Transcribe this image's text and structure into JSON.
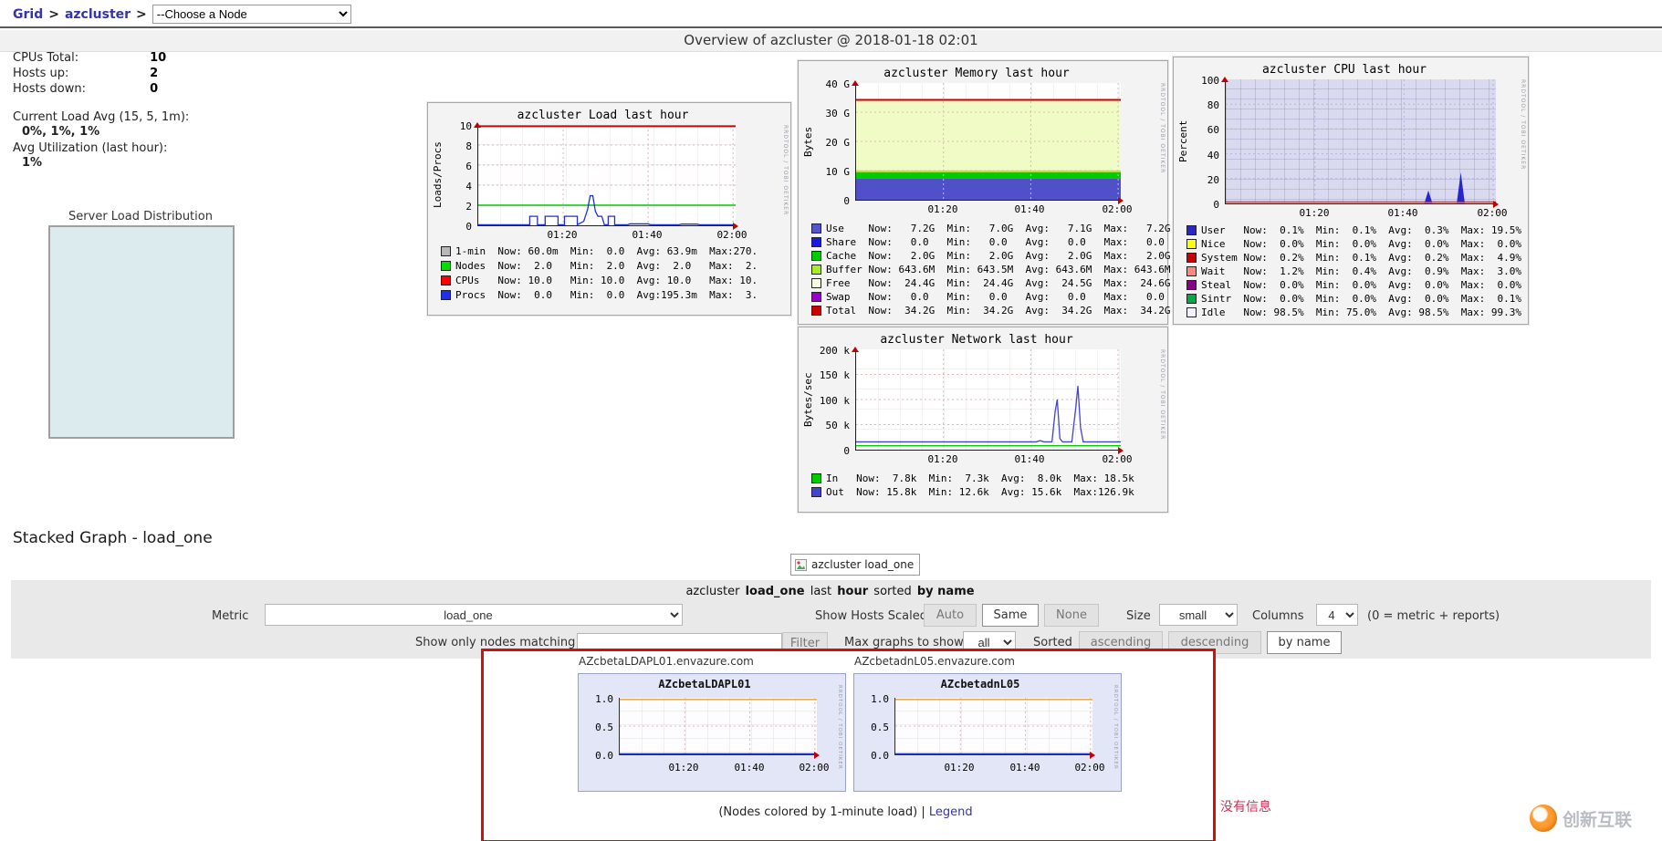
{
  "nav": {
    "links": [
      "Grid",
      "azcluster"
    ],
    "separator": ">",
    "node_select": "--Choose a Node"
  },
  "header": {
    "title": "Overview of azcluster @ 2018-01-18 02:01"
  },
  "summary": {
    "rows": [
      {
        "label": "CPUs Total:",
        "value": "10"
      },
      {
        "label": "Hosts up:",
        "value": "2"
      },
      {
        "label": "Hosts down:",
        "value": "0"
      }
    ],
    "load_avg_label": "Current Load Avg (15, 5, 1m):",
    "load_avg_value": "0%, 1%, 1%",
    "util_label": "Avg Utilization (last hour):",
    "util_value": "1%",
    "pie_title": "Server Load Distribution"
  },
  "charts": {
    "load": {
      "title": "azcluster Load last hour",
      "ylabel": "Loads/Procs",
      "yticks": [
        "10",
        "8",
        "6",
        "4",
        "2",
        "0"
      ],
      "xticks": [
        "01:20",
        "01:40",
        "02:00"
      ],
      "watermark": "RRDTOOL / TOBI OETIKER",
      "legend": [
        {
          "c": "#b8b8b8",
          "t": "1-min  Now: 60.0m  Min:  0.0  Avg: 63.9m  Max:270."
        },
        {
          "c": "#00e000",
          "t": "Nodes  Now:  2.0   Min:  2.0  Avg:  2.0   Max:  2."
        },
        {
          "c": "#ff0000",
          "t": "CPUs   Now: 10.0   Min: 10.0  Avg: 10.0   Max: 10."
        },
        {
          "c": "#2030f0",
          "t": "Procs  Now:  0.0   Min:  0.0  Avg:195.3m  Max:  3."
        }
      ]
    },
    "memory": {
      "title": "azcluster Memory last hour",
      "ylabel": "Bytes",
      "yticks": [
        "40 G",
        "30 G",
        "20 G",
        "10 G",
        "0"
      ],
      "xticks": [
        "01:20",
        "01:40",
        "02:00"
      ],
      "watermark": "RRDTOOL / TOBI OETIKER",
      "legend": [
        {
          "c": "#5555cc",
          "t": "Use    Now:   7.2G  Min:   7.0G  Avg:   7.1G  Max:   7.2G"
        },
        {
          "c": "#1a1ae6",
          "t": "Share  Now:   0.0   Min:   0.0   Avg:   0.0   Max:   0.0"
        },
        {
          "c": "#00cc00",
          "t": "Cache  Now:   2.0G  Min:   2.0G  Avg:   2.0G  Max:   2.0G"
        },
        {
          "c": "#aaee22",
          "t": "Buffer Now: 643.6M  Min: 643.5M  Avg: 643.6M  Max: 643.6M"
        },
        {
          "c": "#f7fce3",
          "t": "Free   Now:  24.4G  Min:  24.4G  Avg:  24.5G  Max:  24.6G"
        },
        {
          "c": "#9900cc",
          "t": "Swap   Now:   0.0   Min:   0.0   Avg:   0.0   Max:   0.0"
        },
        {
          "c": "#cc0000",
          "t": "Total  Now:  34.2G  Min:  34.2G  Avg:  34.2G  Max:  34.2G"
        }
      ]
    },
    "cpu": {
      "title": "azcluster CPU last hour",
      "ylabel": "Percent",
      "yticks": [
        "100",
        "80",
        "60",
        "40",
        "20",
        "0"
      ],
      "xticks": [
        "01:20",
        "01:40",
        "02:00"
      ],
      "watermark": "RRDTOOL / TOBI OETIKER",
      "legend": [
        {
          "c": "#2828c8",
          "t": "User   Now:  0.1%  Min:  0.1%  Avg:  0.3%  Max: 19.5%"
        },
        {
          "c": "#ffff00",
          "t": "Nice   Now:  0.0%  Min:  0.0%  Avg:  0.0%  Max:  0.0%"
        },
        {
          "c": "#cc0000",
          "t": "System Now:  0.2%  Min:  0.1%  Avg:  0.2%  Max:  4.9%"
        },
        {
          "c": "#ff8a77",
          "t": "Wait   Now:  1.2%  Min:  0.4%  Avg:  0.9%  Max:  3.0%"
        },
        {
          "c": "#880088",
          "t": "Steal  Now:  0.0%  Min:  0.0%  Avg:  0.0%  Max:  0.0%"
        },
        {
          "c": "#00aa44",
          "t": "Sintr  Now:  0.0%  Min:  0.0%  Avg:  0.0%  Max:  0.1%"
        },
        {
          "c": "#f2f2ff",
          "t": "Idle   Now: 98.5%  Min: 75.0%  Avg: 98.5%  Max: 99.3%"
        }
      ]
    },
    "network": {
      "title": "azcluster Network last hour",
      "ylabel": "Bytes/sec",
      "yticks": [
        "200 k",
        "150 k",
        "100 k",
        "50 k",
        "0"
      ],
      "xticks": [
        "01:20",
        "01:40",
        "02:00"
      ],
      "watermark": "RRDTOOL / TOBI OETIKER",
      "legend": [
        {
          "c": "#00cc00",
          "t": "In   Now:  7.8k  Min:  7.3k  Avg:  8.0k  Max: 18.5k"
        },
        {
          "c": "#4444cc",
          "t": "Out  Now: 15.8k  Min: 12.6k  Avg: 15.6k  Max:126.9k"
        }
      ]
    }
  },
  "stacked": {
    "heading": "Stacked Graph - load_one",
    "placeholder_label": "azcluster load_one",
    "toolbar": {
      "title_pre": "azcluster",
      "title_metric": "load_one",
      "title_last": "last",
      "title_hour": "hour",
      "title_sorted": "sorted",
      "title_by": "by name",
      "metric_label": "Metric",
      "metric_value": "load_one",
      "scaled_label": "Show Hosts Scaled:",
      "scaled_options": [
        "Auto",
        "Same",
        "None"
      ],
      "scaled_selected": "Same",
      "size_label": "Size",
      "size_value": "small",
      "columns_label": "Columns",
      "columns_value": "4",
      "columns_note": "(0 = metric + reports)",
      "filter_label": "Show only nodes matching",
      "filter_value": "",
      "filter_button": "Filter",
      "max_label": "Max graphs to show",
      "max_value": "all",
      "sorted_label": "Sorted",
      "sort_options": [
        "ascending",
        "descending",
        "by name"
      ],
      "sort_selected": "by name"
    },
    "hosts": [
      {
        "link": "AZcbetaLDAPL01.envazure.com",
        "title": "AZcbetaLDAPL01",
        "yticks": [
          "1.0",
          "0.5",
          "0.0"
        ],
        "xticks": [
          "01:20",
          "01:40",
          "02:00"
        ],
        "watermark": "RRDTOOL / TOBI OETIKER"
      },
      {
        "link": "AZcbetadnL05.envazure.com",
        "title": "AZcbetadnL05",
        "yticks": [
          "1.0",
          "0.5",
          "0.0"
        ],
        "xticks": [
          "01:20",
          "01:40",
          "02:00"
        ],
        "watermark": "RRDTOOL / TOBI OETIKER"
      }
    ],
    "caption": "(Nodes colored by 1-minute load)",
    "caption_sep": "|",
    "legend_link": "Legend"
  },
  "misc": {
    "no_info": "没有信息",
    "logo_text": "创新互联"
  },
  "colors": {
    "link": "#3434ad",
    "red_box_border": "#d40d0d",
    "no_info_text": "#cc3355",
    "logo_orange": "#ff9d2e",
    "toolbar_bg": "#e9e9e9",
    "host_panel_bg": "#e2e6f6",
    "cpu_idle_fill": "#d9d9f0",
    "memory_free_fill": "#f0fbc6"
  },
  "chart_data": [
    {
      "type": "line",
      "title": "azcluster Load last hour",
      "ylabel": "Loads/Procs",
      "ylim": [
        0,
        10
      ],
      "xticks": [
        "01:20",
        "01:40",
        "02:00"
      ],
      "grid": true,
      "legend_position": "bottom",
      "series": [
        {
          "name": "1-min",
          "color": "#b8b8b8",
          "now": "60.0m",
          "min": "0.0",
          "avg": "63.9m",
          "max": "270."
        },
        {
          "name": "Nodes",
          "color": "#00e000",
          "now": 2.0,
          "min": 2.0,
          "avg": 2.0,
          "max": 2.0,
          "shape": "flat line at 2"
        },
        {
          "name": "CPUs",
          "color": "#ff0000",
          "now": 10.0,
          "min": 10.0,
          "avg": 10.0,
          "max": 10.0,
          "shape": "flat line at 10"
        },
        {
          "name": "Procs",
          "color": "#2030f0",
          "now": "0.0",
          "min": "0.0",
          "avg": "195.3m",
          "max": "3.",
          "shape": "near 0 with square bumps to 1 and spike to 3 around 01:22"
        }
      ]
    },
    {
      "type": "area",
      "title": "azcluster Memory last hour",
      "ylabel": "Bytes",
      "ylim_bytes": [
        0,
        "40G"
      ],
      "xticks": [
        "01:20",
        "01:40",
        "02:00"
      ],
      "stacked": true,
      "series": [
        {
          "name": "Use",
          "color": "#5555cc",
          "now": "7.2G",
          "min": "7.0G",
          "avg": "7.1G",
          "max": "7.2G"
        },
        {
          "name": "Share",
          "color": "#1a1ae6",
          "now": "0.0",
          "min": "0.0",
          "avg": "0.0",
          "max": "0.0"
        },
        {
          "name": "Cache",
          "color": "#00cc00",
          "now": "2.0G",
          "min": "2.0G",
          "avg": "2.0G",
          "max": "2.0G"
        },
        {
          "name": "Buffer",
          "color": "#aaee22",
          "now": "643.6M",
          "min": "643.5M",
          "avg": "643.6M",
          "max": "643.6M"
        },
        {
          "name": "Free",
          "color": "#f7fce3",
          "now": "24.4G",
          "min": "24.4G",
          "avg": "24.5G",
          "max": "24.6G"
        },
        {
          "name": "Swap",
          "color": "#9900cc",
          "now": "0.0",
          "min": "0.0",
          "avg": "0.0",
          "max": "0.0"
        },
        {
          "name": "Total",
          "color": "#cc0000",
          "now": "34.2G",
          "min": "34.2G",
          "avg": "34.2G",
          "max": "34.2G",
          "shape": "flat red line at ~34.2G"
        }
      ]
    },
    {
      "type": "area",
      "title": "azcluster CPU last hour",
      "ylabel": "Percent",
      "ylim": [
        0,
        100
      ],
      "xticks": [
        "01:20",
        "01:40",
        "02:00"
      ],
      "stacked": true,
      "series": [
        {
          "name": "User",
          "color": "#2828c8",
          "now": "0.1%",
          "min": "0.1%",
          "avg": "0.3%",
          "max": "19.5%",
          "shape": "spikes ~10% at 01:48 and ~20-25% at 01:53"
        },
        {
          "name": "Nice",
          "color": "#ffff00",
          "now": "0.0%",
          "min": "0.0%",
          "avg": "0.0%",
          "max": "0.0%"
        },
        {
          "name": "System",
          "color": "#cc0000",
          "now": "0.2%",
          "min": "0.1%",
          "avg": "0.2%",
          "max": "4.9%"
        },
        {
          "name": "Wait",
          "color": "#ff8a77",
          "now": "1.2%",
          "min": "0.4%",
          "avg": "0.9%",
          "max": "3.0%"
        },
        {
          "name": "Steal",
          "color": "#880088",
          "now": "0.0%",
          "min": "0.0%",
          "avg": "0.0%",
          "max": "0.0%"
        },
        {
          "name": "Sintr",
          "color": "#00aa44",
          "now": "0.0%",
          "min": "0.0%",
          "avg": "0.0%",
          "max": "0.1%"
        },
        {
          "name": "Idle",
          "color": "#f2f2ff",
          "now": "98.5%",
          "min": "75.0%",
          "avg": "98.5%",
          "max": "99.3%",
          "shape": "fills plot background"
        }
      ]
    },
    {
      "type": "line",
      "title": "azcluster Network last hour",
      "ylabel": "Bytes/sec",
      "ylim_bytes": [
        0,
        "200k"
      ],
      "xticks": [
        "01:20",
        "01:40",
        "02:00"
      ],
      "series": [
        {
          "name": "In",
          "color": "#00cc00",
          "now": "7.8k",
          "min": "7.3k",
          "avg": "8.0k",
          "max": "18.5k",
          "shape": "flat ~8k"
        },
        {
          "name": "Out",
          "color": "#4444cc",
          "now": "15.8k",
          "min": "12.6k",
          "avg": "15.6k",
          "max": "126.9k",
          "shape": "flat ~15k with spikes ~100k at 01:48 and ~127k at 01:52"
        }
      ]
    },
    {
      "type": "line",
      "title": "AZcbetaLDAPL01",
      "ylim": [
        0,
        1
      ],
      "xticks": [
        "01:20",
        "01:40",
        "02:00"
      ],
      "series": [
        {
          "name": "load_one",
          "shape": "flat near 0"
        }
      ]
    },
    {
      "type": "line",
      "title": "AZcbetadnL05",
      "ylim": [
        0,
        1
      ],
      "xticks": [
        "01:20",
        "01:40",
        "02:00"
      ],
      "series": [
        {
          "name": "load_one",
          "shape": "flat near 0"
        }
      ]
    }
  ]
}
